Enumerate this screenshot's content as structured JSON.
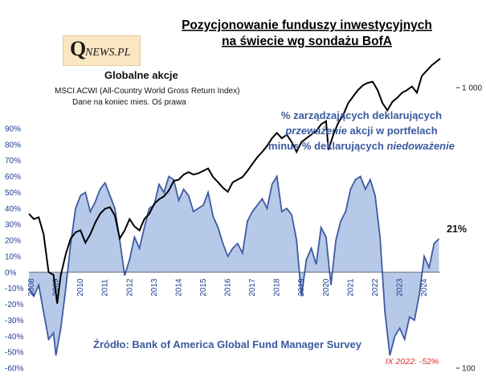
{
  "title_line1": "Pozycjonowanie funduszy inwestycyjnych",
  "title_line2": "na świecie wg sondażu BofA",
  "logo": {
    "q": "Q",
    "text": "NEWS.PL"
  },
  "label_global": "Globalne  akcje",
  "label_index": "MSCI ACWI (All-Country World Gross Return Index)",
  "label_data": "Dane na koniec mies. Oś prawa",
  "annotation": {
    "line1": "% zarządzających deklarujących",
    "line2_italic": "przeważenie",
    "line2_rest": " akcji w portfelach",
    "line3_rest": "minus % deklarujących ",
    "line3_italic": "niedoważenie"
  },
  "source": "Źródło: Bank of America Global Fund Manager Survey",
  "min_note": "IX 2022: -52%",
  "last_value": "21%",
  "colors": {
    "area": "#b7c9e8",
    "line": "#3e5aa3",
    "index": "#000000",
    "text": "#1f3f8f"
  },
  "chart_data": {
    "type": "area",
    "title": "Pozycjonowanie funduszy inwestycyjnych na świecie wg sondażu BofA",
    "left_axis": {
      "ylim": [
        -60,
        100
      ],
      "ticks": [
        "-60%",
        "-50%",
        "-40%",
        "-30%",
        "-20%",
        "-10%",
        "0%",
        "10%",
        "20%",
        "30%",
        "40%",
        "50%",
        "60%",
        "70%",
        "80%",
        "90%"
      ]
    },
    "right_axis": {
      "scale": "log",
      "ylim": [
        100,
        1800
      ],
      "ticks": [
        "100",
        "1 000"
      ]
    },
    "x_labels": [
      "2008",
      "2009",
      "2010",
      "2011",
      "2012",
      "2013",
      "2014",
      "2015",
      "2016",
      "2017",
      "2018",
      "2019",
      "2020",
      "2021",
      "2022",
      "2023",
      "2024"
    ],
    "x_range": [
      2008.0,
      2024.75
    ],
    "series": [
      {
        "name": "% zarządzających przeważenie minus niedoważenie akcji",
        "axis": "left",
        "x": [
          2008.0,
          2008.2,
          2008.4,
          2008.6,
          2008.8,
          2009.0,
          2009.1,
          2009.3,
          2009.5,
          2009.7,
          2009.9,
          2010.1,
          2010.3,
          2010.5,
          2010.7,
          2010.9,
          2011.1,
          2011.3,
          2011.5,
          2011.7,
          2011.9,
          2012.1,
          2012.3,
          2012.5,
          2012.7,
          2012.9,
          2013.1,
          2013.3,
          2013.5,
          2013.7,
          2013.9,
          2014.1,
          2014.3,
          2014.5,
          2014.7,
          2014.9,
          2015.1,
          2015.3,
          2015.5,
          2015.7,
          2015.9,
          2016.1,
          2016.3,
          2016.5,
          2016.7,
          2016.9,
          2017.1,
          2017.3,
          2017.5,
          2017.7,
          2017.9,
          2018.1,
          2018.3,
          2018.5,
          2018.7,
          2018.9,
          2019.1,
          2019.3,
          2019.5,
          2019.7,
          2019.9,
          2020.1,
          2020.3,
          2020.5,
          2020.7,
          2020.9,
          2021.1,
          2021.3,
          2021.5,
          2021.7,
          2021.9,
          2022.1,
          2022.3,
          2022.5,
          2022.7,
          2022.9,
          2023.1,
          2023.3,
          2023.5,
          2023.7,
          2023.9,
          2024.1,
          2024.3,
          2024.5,
          2024.7
        ],
        "values": [
          -10,
          -15,
          -8,
          -25,
          -42,
          -38,
          -52,
          -35,
          -10,
          18,
          40,
          48,
          50,
          38,
          44,
          52,
          56,
          48,
          40,
          20,
          -2,
          8,
          22,
          15,
          28,
          40,
          42,
          55,
          50,
          60,
          58,
          45,
          52,
          48,
          38,
          40,
          42,
          50,
          35,
          28,
          18,
          10,
          15,
          18,
          12,
          32,
          38,
          42,
          46,
          40,
          55,
          60,
          38,
          40,
          36,
          20,
          -15,
          8,
          15,
          5,
          28,
          22,
          -8,
          20,
          32,
          38,
          52,
          58,
          60,
          52,
          58,
          48,
          22,
          -25,
          -52,
          -40,
          -35,
          -42,
          -28,
          -30,
          -14,
          10,
          3,
          18,
          21
        ]
      },
      {
        "name": "MSCI ACWI (All-Country World Gross Return Index)",
        "axis": "right",
        "x": [
          2008.0,
          2008.2,
          2008.4,
          2008.6,
          2008.8,
          2009.0,
          2009.15,
          2009.3,
          2009.5,
          2009.7,
          2009.9,
          2010.1,
          2010.3,
          2010.5,
          2010.7,
          2010.9,
          2011.1,
          2011.3,
          2011.5,
          2011.7,
          2011.9,
          2012.1,
          2012.3,
          2012.5,
          2012.7,
          2012.9,
          2013.1,
          2013.3,
          2013.5,
          2013.7,
          2013.9,
          2014.1,
          2014.3,
          2014.5,
          2014.7,
          2014.9,
          2015.1,
          2015.3,
          2015.5,
          2015.7,
          2015.9,
          2016.1,
          2016.3,
          2016.5,
          2016.7,
          2016.9,
          2017.1,
          2017.3,
          2017.5,
          2017.7,
          2017.9,
          2018.1,
          2018.3,
          2018.5,
          2018.7,
          2018.9,
          2019.1,
          2019.3,
          2019.5,
          2019.7,
          2019.9,
          2020.1,
          2020.2,
          2020.4,
          2020.6,
          2020.8,
          2021.0,
          2021.2,
          2021.4,
          2021.6,
          2021.8,
          2022.0,
          2022.2,
          2022.4,
          2022.6,
          2022.8,
          2023.0,
          2023.2,
          2023.4,
          2023.6,
          2023.8,
          2024.0,
          2024.2,
          2024.4,
          2024.6,
          2024.75
        ],
        "values": [
          355,
          340,
          345,
          300,
          220,
          215,
          170,
          215,
          255,
          290,
          305,
          310,
          280,
          300,
          330,
          355,
          370,
          375,
          350,
          290,
          310,
          340,
          320,
          310,
          340,
          355,
          385,
          400,
          410,
          430,
          465,
          470,
          490,
          500,
          490,
          495,
          505,
          515,
          480,
          460,
          440,
          425,
          460,
          470,
          480,
          505,
          535,
          565,
          590,
          620,
          660,
          690,
          660,
          680,
          640,
          590,
          640,
          660,
          680,
          700,
          740,
          760,
          600,
          680,
          750,
          800,
          880,
          930,
          980,
          1020,
          1040,
          1050,
          980,
          880,
          830,
          890,
          920,
          960,
          980,
          1010,
          960,
          1100,
          1150,
          1200,
          1240,
          1270
        ]
      }
    ]
  }
}
